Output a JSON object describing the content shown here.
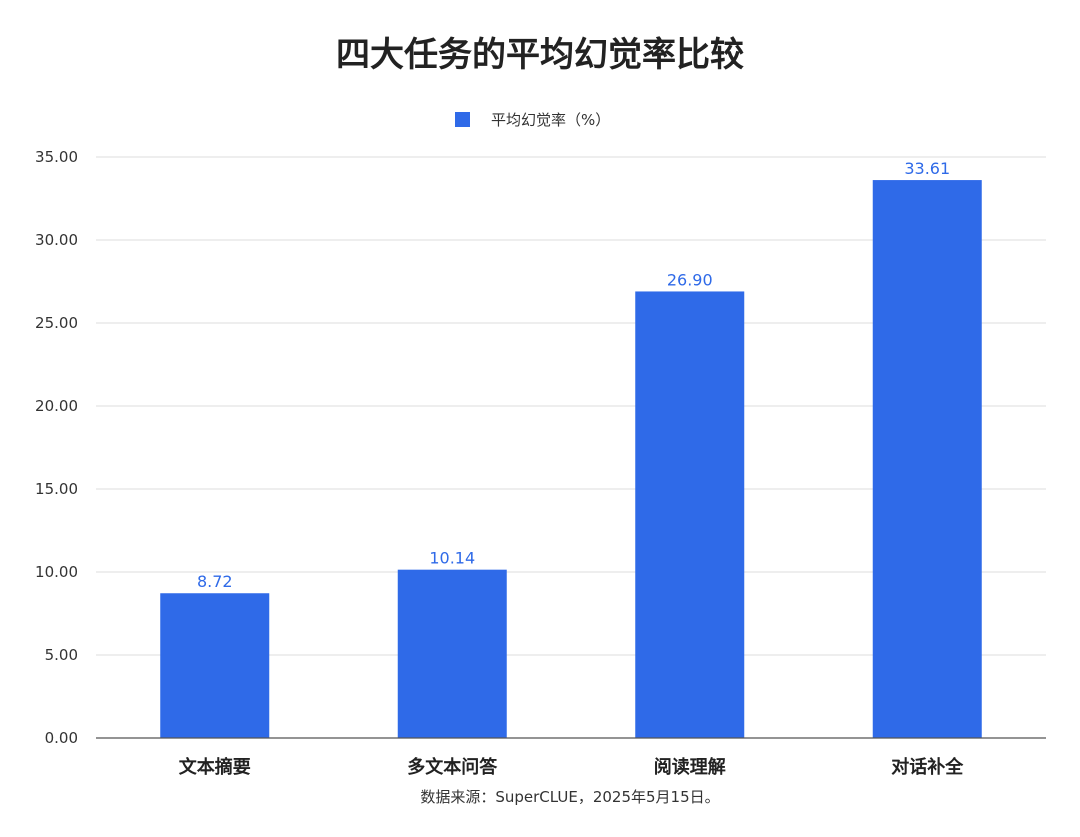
{
  "chart_data": {
    "type": "bar",
    "title": "四大任务的平均幻觉率比较",
    "legend": {
      "placement": "top-center",
      "entries": [
        "平均幻觉率（%）"
      ]
    },
    "categories": [
      "文本摘要",
      "多文本问答",
      "阅读理解",
      "对话补全"
    ],
    "series": [
      {
        "name": "平均幻觉率（%）",
        "values": [
          8.72,
          10.14,
          26.9,
          33.61
        ],
        "color": "#2f6ae8"
      }
    ],
    "data_labels": [
      "8.72",
      "10.14",
      "26.90",
      "33.61"
    ],
    "y_ticks": [
      "0.00",
      "5.00",
      "10.00",
      "15.00",
      "20.00",
      "25.00",
      "30.00",
      "35.00"
    ],
    "ylim": [
      0,
      35
    ],
    "grid": true,
    "xlabel": "",
    "ylabel": "",
    "source": "数据来源：SuperCLUE，2025年5月15日。"
  },
  "colors": {
    "bar": "#2f6ae8",
    "label": "#2f6ae8"
  }
}
